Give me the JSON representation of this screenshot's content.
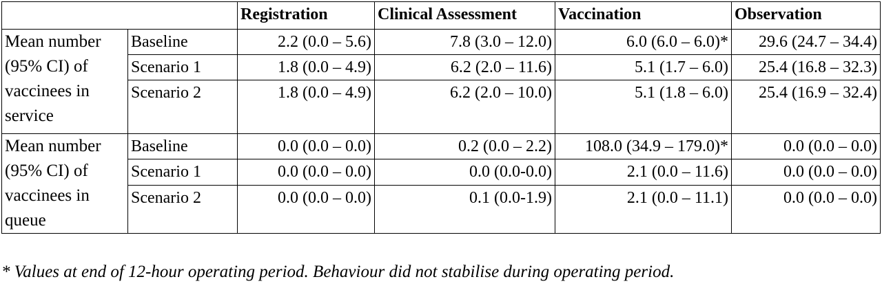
{
  "headers": {
    "corner": "",
    "registration": "Registration",
    "clinical": "Clinical Assessment",
    "vaccination": "Vaccination",
    "observation": "Observation"
  },
  "groups": [
    {
      "label": "Mean number (95% CI) of vaccinees in service",
      "rows": [
        {
          "scenario": "Baseline",
          "registration": "2.2 (0.0 – 5.6)",
          "clinical": "7.8 (3.0 – 12.0)",
          "vaccination": "6.0 (6.0 – 6.0)*",
          "observation": "29.6 (24.7 – 34.4)"
        },
        {
          "scenario": "Scenario 1",
          "registration": "1.8 (0.0 – 4.9)",
          "clinical": "6.2 (2.0 – 11.6)",
          "vaccination": "5.1 (1.7 – 6.0)",
          "observation": "25.4 (16.8 – 32.3)"
        },
        {
          "scenario": "Scenario 2",
          "registration": "1.8 (0.0 – 4.9)",
          "clinical": "6.2 (2.0 – 10.0)",
          "vaccination": "5.1 (1.8 – 6.0)",
          "observation": "25.4 (16.9 – 32.4)"
        }
      ]
    },
    {
      "label": "Mean number (95% CI) of vaccinees in queue",
      "rows": [
        {
          "scenario": "Baseline",
          "registration": "0.0 (0.0 – 0.0)",
          "clinical": "0.2 (0.0 – 2.2)",
          "vaccination": "108.0 (34.9 – 179.0)*",
          "observation": "0.0 (0.0 – 0.0)"
        },
        {
          "scenario": "Scenario 1",
          "registration": "0.0 (0.0 – 0.0)",
          "clinical": "0.0 (0.0-0.0)",
          "vaccination": "2.1 (0.0 – 11.6)",
          "observation": "0.0 (0.0 – 0.0)"
        },
        {
          "scenario": "Scenario 2",
          "registration": "0.0 (0.0 – 0.0)",
          "clinical": "0.1 (0.0-1.9)",
          "vaccination": "2.1 (0.0 – 11.1)",
          "observation": "0.0 (0.0 – 0.0)"
        }
      ]
    }
  ],
  "footnote": "* Values at end of 12-hour operating period. Behaviour did not stabilise during operating period."
}
